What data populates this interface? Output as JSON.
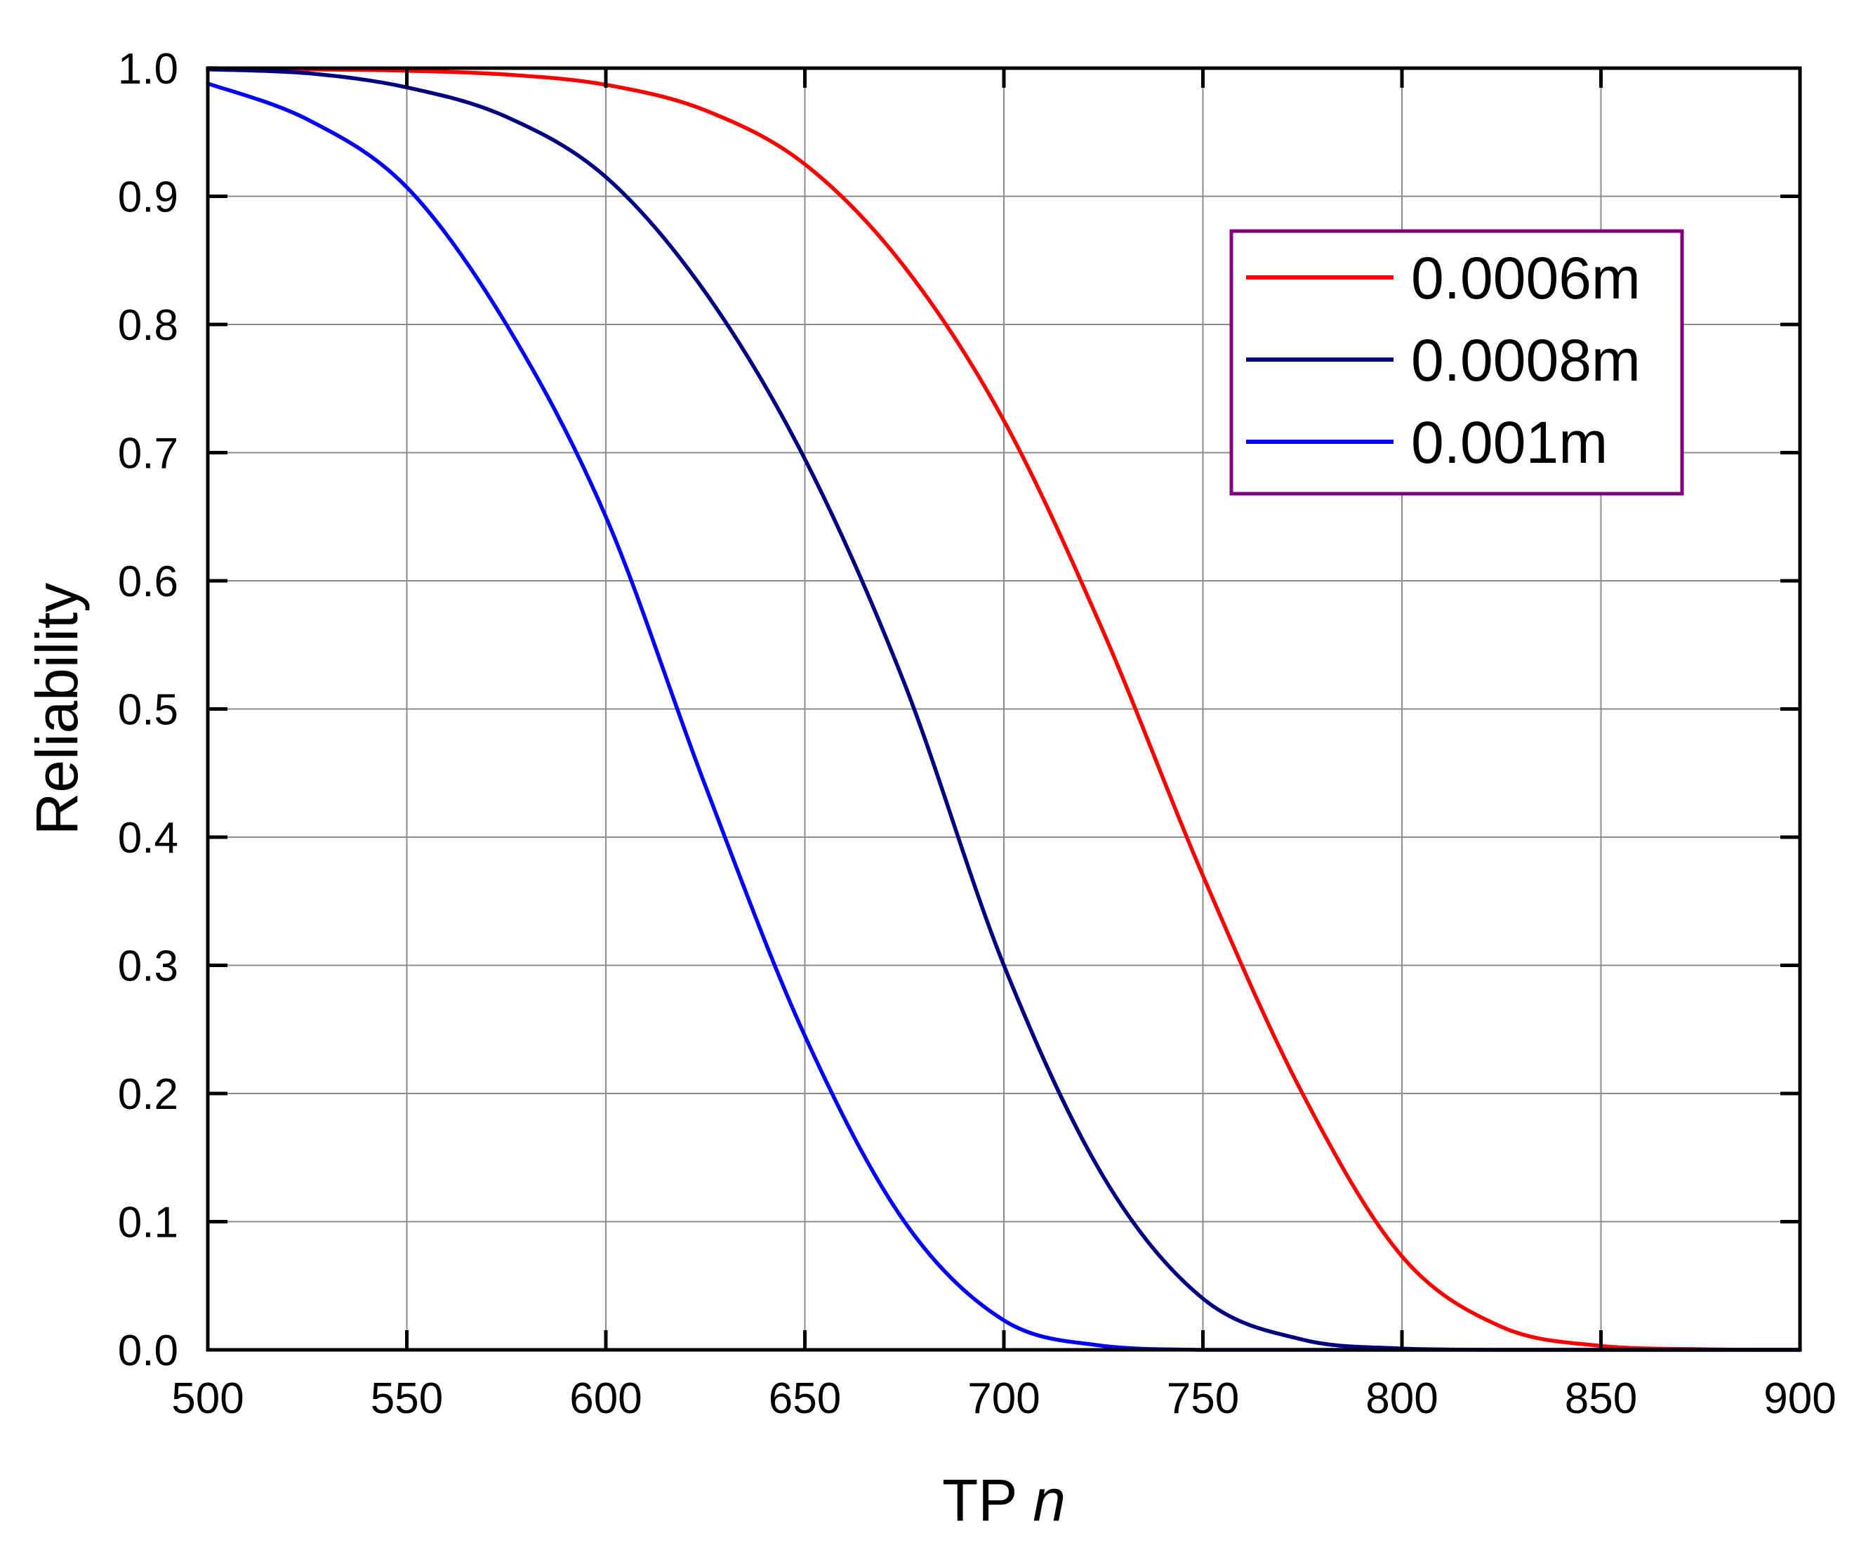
{
  "chart_data": {
    "type": "line",
    "title": "",
    "xlabel": "TP",
    "xlabel_var": "n",
    "ylabel": "Reliability",
    "xlim": [
      500,
      900
    ],
    "ylim": [
      0.0,
      1.0
    ],
    "x_ticks": [
      "500",
      "550",
      "600",
      "650",
      "700",
      "750",
      "800",
      "850",
      "900"
    ],
    "y_ticks": [
      "0.0",
      "0.1",
      "0.2",
      "0.3",
      "0.4",
      "0.5",
      "0.6",
      "0.7",
      "0.8",
      "0.9",
      "1.0"
    ],
    "grid": true,
    "legend_position": "top-right",
    "legend_border_color": "#800080",
    "series": [
      {
        "name": "0.0006m",
        "color": "#ff0000",
        "x": [
          500,
          525,
          550,
          575,
          600,
          625,
          650,
          675,
          700,
          725,
          750,
          775,
          800,
          825,
          850,
          875,
          900
        ],
        "y": [
          1.0,
          0.999,
          0.998,
          0.995,
          0.987,
          0.967,
          0.925,
          0.845,
          0.725,
          0.56,
          0.37,
          0.2,
          0.073,
          0.018,
          0.003,
          0.0005,
          0.0
        ]
      },
      {
        "name": "0.0008m",
        "color": "#000080",
        "x": [
          500,
          525,
          550,
          575,
          600,
          625,
          650,
          675,
          700,
          725,
          750,
          775,
          800,
          825,
          850,
          875,
          900
        ],
        "y": [
          0.999,
          0.996,
          0.985,
          0.962,
          0.915,
          0.825,
          0.695,
          0.52,
          0.3,
          0.135,
          0.04,
          0.008,
          0.001,
          0.0,
          0.0,
          0.0,
          0.0
        ]
      },
      {
        "name": "0.001m",
        "color": "#0000ff",
        "x": [
          500,
          525,
          550,
          575,
          600,
          625,
          650,
          675,
          700,
          725,
          750,
          775,
          800,
          825,
          850,
          875,
          900
        ],
        "y": [
          0.988,
          0.96,
          0.907,
          0.8,
          0.65,
          0.44,
          0.245,
          0.1,
          0.023,
          0.003,
          0.0,
          0.0,
          0.0,
          0.0,
          0.0,
          0.0,
          0.0
        ]
      }
    ]
  }
}
